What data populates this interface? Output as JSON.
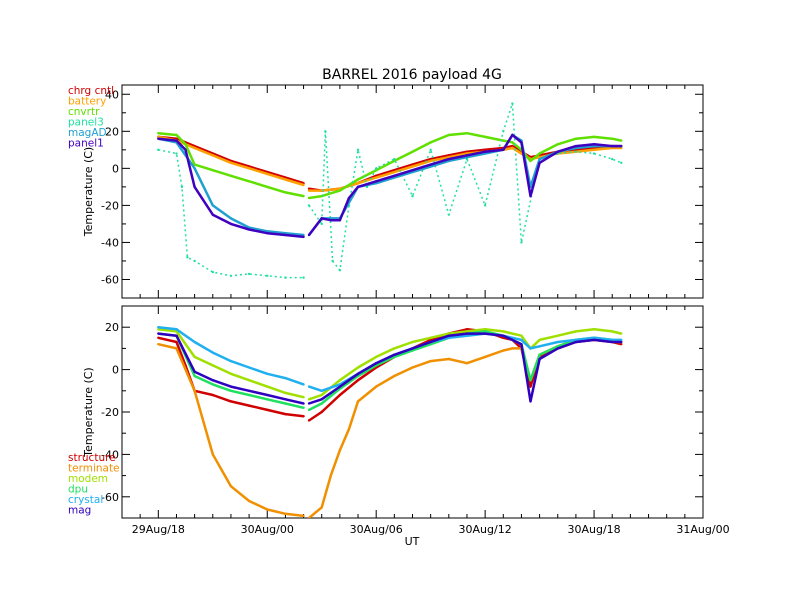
{
  "chart_data": {
    "type": "line",
    "title": "BARREL 2016 payload 4G",
    "xlabel": "UT",
    "x_ticks": [
      "29Aug/18",
      "30Aug/00",
      "30Aug/06",
      "30Aug/12",
      "30Aug/18",
      "31Aug/00"
    ],
    "x_range_hours": [
      -2,
      30
    ],
    "panels": [
      {
        "ylabel": "Temperature (C)",
        "ylim": [
          -70,
          45
        ],
        "y_ticks": [
          40,
          20,
          0,
          -20,
          -40,
          -60
        ],
        "legend_position": "top-left outside",
        "series": [
          {
            "name": "chrg cntl",
            "color": "#d00000",
            "x": [
              0,
              1,
              2,
              3,
              4,
              5,
              6,
              7,
              8,
              8.3,
              9,
              10,
              11,
              12,
              13,
              14,
              15,
              16,
              17,
              18,
              19,
              19.5,
              20,
              20.5,
              21,
              22,
              23,
              24,
              25,
              25.5
            ],
            "y": [
              17,
              16,
              12,
              8,
              4,
              1,
              -2,
              -5,
              -8,
              -11,
              -12,
              -11,
              -8,
              -4,
              -1,
              2,
              5,
              7,
              9,
              10,
              11,
              12,
              9,
              6,
              7,
              9,
              10,
              11,
              12,
              12
            ]
          },
          {
            "name": "battery",
            "color": "#ffa000",
            "x": [
              0,
              1,
              2,
              3,
              4,
              5,
              6,
              7,
              8,
              8.3,
              9,
              10,
              11,
              12,
              13,
              14,
              15,
              16,
              17,
              18,
              19,
              19.5,
              20,
              20.5,
              21,
              22,
              23,
              24,
              25,
              25.5
            ],
            "y": [
              17,
              15,
              11,
              7,
              3,
              0,
              -3,
              -6,
              -9,
              -12,
              -12,
              -11,
              -8,
              -5,
              -2,
              1,
              4,
              6,
              8,
              9,
              10,
              11,
              8,
              5,
              6,
              8,
              9,
              10,
              11,
              11
            ]
          },
          {
            "name": "cnvrtr",
            "color": "#60e000",
            "x": [
              0,
              1,
              1.5,
              2,
              3,
              4,
              5,
              6,
              7,
              8,
              8.3,
              9,
              10,
              11,
              12,
              13,
              14,
              15,
              16,
              17,
              18,
              19,
              19.5,
              20,
              20.5,
              21,
              22,
              23,
              24,
              25,
              25.5
            ],
            "y": [
              19,
              18,
              13,
              2,
              -1,
              -4,
              -7,
              -10,
              -13,
              -15,
              -16,
              -15,
              -12,
              -6,
              -1,
              4,
              9,
              14,
              18,
              19,
              17,
              15,
              14,
              10,
              4,
              8,
              13,
              16,
              17,
              16,
              15
            ]
          },
          {
            "name": "panel3",
            "color": "#20e0a0",
            "x": [
              0,
              1,
              1.3,
              1.6,
              2,
              3,
              4,
              5,
              6,
              7,
              8,
              8.3,
              9,
              9.2,
              9.6,
              10,
              10.5,
              11,
              11.5,
              12,
              13,
              14,
              15,
              16,
              17,
              18,
              19,
              19.5,
              20,
              21,
              22,
              23,
              24,
              25,
              25.5
            ],
            "y": [
              10,
              8,
              -10,
              -48,
              -50,
              -56,
              -58,
              -57,
              -58,
              -59,
              -59,
              -20,
              -30,
              20,
              -50,
              -55,
              -20,
              10,
              -10,
              0,
              5,
              -15,
              10,
              -25,
              5,
              -20,
              20,
              35,
              -40,
              5,
              8,
              9,
              8,
              5,
              3
            ]
          },
          {
            "name": "magAD",
            "color": "#20a0d0",
            "x": [
              0,
              1,
              2,
              3,
              4,
              5,
              6,
              7,
              8,
              8.3,
              9,
              10,
              11,
              12,
              13,
              14,
              15,
              16,
              17,
              18,
              19,
              19.5,
              20,
              20.5,
              21,
              22,
              23,
              24,
              25,
              25.5
            ],
            "y": [
              16,
              14,
              0,
              -20,
              -27,
              -32,
              -34,
              -35,
              -36,
              -36,
              -27,
              -27,
              -10,
              -8,
              -5,
              -2,
              1,
              4,
              6,
              8,
              10,
              18,
              15,
              -10,
              5,
              9,
              11,
              12,
              12,
              12
            ]
          },
          {
            "name": "panel1",
            "color": "#4000c0",
            "x": [
              0,
              1,
              1.5,
              2,
              3,
              4,
              5,
              6,
              7,
              8,
              8.3,
              9,
              9.5,
              10,
              10.5,
              11,
              12,
              13,
              14,
              15,
              16,
              17,
              18,
              19,
              19.5,
              20,
              20.5,
              21,
              22,
              23,
              24,
              25,
              25.5
            ],
            "y": [
              16,
              15,
              10,
              -10,
              -25,
              -30,
              -33,
              -35,
              -36,
              -37,
              -36,
              -27,
              -28,
              -28,
              -16,
              -10,
              -7,
              -4,
              -1,
              2,
              5,
              7,
              9,
              10,
              18,
              14,
              -15,
              3,
              9,
              12,
              13,
              12,
              12
            ]
          }
        ]
      },
      {
        "ylabel": "Temperature (C)",
        "ylim": [
          -70,
          30
        ],
        "y_ticks": [
          20,
          0,
          -20,
          -40,
          -60
        ],
        "legend_position": "bottom-left outside",
        "series": [
          {
            "name": "structure",
            "color": "#d00000",
            "x": [
              0,
              1,
              1.5,
              2,
              3,
              4,
              5,
              6,
              7,
              8,
              8.3,
              9,
              10,
              11,
              12,
              13,
              14,
              15,
              16,
              17,
              18,
              19,
              19.5,
              20,
              20.5,
              21,
              22,
              23,
              24,
              25,
              25.5
            ],
            "y": [
              15,
              13,
              2,
              -10,
              -12,
              -15,
              -17,
              -19,
              -21,
              -22,
              -24,
              -20,
              -12,
              -5,
              1,
              6,
              10,
              14,
              17,
              19,
              18,
              15,
              14,
              10,
              -8,
              6,
              10,
              13,
              14,
              13,
              12
            ]
          },
          {
            "name": "terminate",
            "color": "#f09000",
            "x": [
              0,
              1,
              2,
              3,
              4,
              5,
              6,
              7,
              8,
              8.3,
              9,
              9.5,
              10,
              10.5,
              11,
              12,
              13,
              14,
              15,
              16,
              17,
              18,
              19,
              19.5,
              20,
              20.5,
              21,
              22,
              23,
              24,
              25,
              25.5
            ],
            "y": [
              12,
              10,
              -10,
              -40,
              -55,
              -62,
              -66,
              -68,
              -69,
              -70,
              -65,
              -50,
              -38,
              -28,
              -15,
              -8,
              -3,
              1,
              4,
              5,
              3,
              6,
              9,
              10,
              10,
              -5,
              7,
              11,
              14,
              14,
              13,
              13
            ]
          },
          {
            "name": "modem",
            "color": "#a0e000",
            "x": [
              0,
              1,
              2,
              3,
              4,
              5,
              6,
              7,
              8,
              8.3,
              9,
              10,
              11,
              12,
              13,
              14,
              15,
              16,
              17,
              18,
              19,
              19.5,
              20,
              20.5,
              21,
              22,
              23,
              24,
              25,
              25.5
            ],
            "y": [
              19,
              18,
              6,
              2,
              -2,
              -5,
              -8,
              -11,
              -13,
              -14,
              -12,
              -5,
              1,
              6,
              10,
              13,
              15,
              17,
              18,
              19,
              18,
              17,
              16,
              10,
              14,
              16,
              18,
              19,
              18,
              17
            ]
          },
          {
            "name": "dpu",
            "color": "#20e060",
            "x": [
              0,
              1,
              2,
              3,
              4,
              5,
              6,
              7,
              8,
              8.3,
              9,
              10,
              11,
              12,
              13,
              14,
              15,
              16,
              17,
              18,
              19,
              19.5,
              20,
              20.5,
              21,
              22,
              23,
              24,
              25,
              25.5
            ],
            "y": [
              17,
              16,
              -3,
              -7,
              -10,
              -12,
              -14,
              -16,
              -18,
              -19,
              -16,
              -9,
              -3,
              2,
              6,
              9,
              12,
              15,
              17,
              18,
              16,
              14,
              12,
              -5,
              7,
              11,
              14,
              15,
              14,
              13
            ]
          },
          {
            "name": "crystal",
            "color": "#20b0f0",
            "x": [
              0,
              1,
              2,
              3,
              4,
              5,
              6,
              7,
              8,
              8.3,
              9,
              10,
              11,
              12,
              13,
              14,
              15,
              16,
              17,
              18,
              19,
              19.5,
              20,
              20.5,
              21,
              22,
              23,
              24,
              25,
              25.5
            ],
            "y": [
              20,
              19,
              13,
              8,
              4,
              1,
              -2,
              -4,
              -7,
              -8,
              -10,
              -7,
              -2,
              3,
              7,
              10,
              13,
              15,
              16,
              17,
              16,
              15,
              14,
              10,
              11,
              13,
              14,
              15,
              14,
              14
            ]
          },
          {
            "name": "mag",
            "color": "#3000c0",
            "x": [
              0,
              1,
              2,
              3,
              4,
              5,
              6,
              7,
              8,
              8.3,
              9,
              10,
              11,
              12,
              13,
              14,
              15,
              16,
              17,
              18,
              19,
              19.5,
              20,
              20.5,
              21,
              22,
              23,
              24,
              25,
              25.5
            ],
            "y": [
              17,
              16,
              -1,
              -5,
              -8,
              -10,
              -12,
              -14,
              -16,
              -16,
              -14,
              -8,
              -2,
              3,
              7,
              10,
              13,
              16,
              17,
              17,
              16,
              14,
              12,
              -15,
              5,
              10,
              13,
              14,
              13,
              13
            ]
          }
        ]
      }
    ]
  }
}
